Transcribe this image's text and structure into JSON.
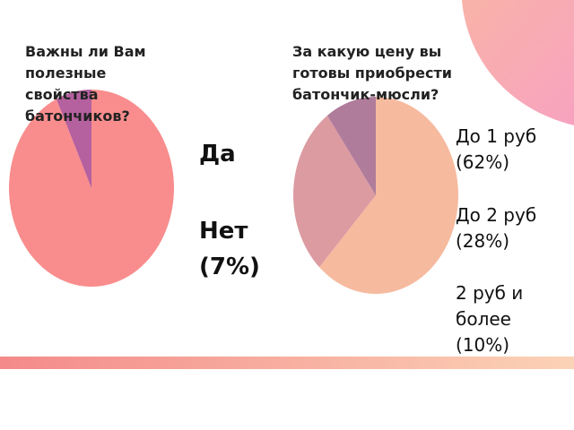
{
  "chart_data": [
    {
      "type": "pie",
      "title": "Важны ли Вам\nполезные\n свойства\nбатончиков?",
      "categories": [
        "Да",
        "Нет"
      ],
      "values": [
        93,
        7
      ],
      "value_labels": [
        null,
        "(7%)"
      ],
      "colors": [
        "#f98d8d",
        "#b5609f"
      ]
    },
    {
      "type": "pie",
      "title": "За какую цену вы\nготовы приобрести\nбатончик-мюсли?",
      "categories": [
        "До 1 руб",
        "До 2 руб",
        "2 руб и более"
      ],
      "values": [
        62,
        28,
        10
      ],
      "value_labels": [
        "(62%)",
        "(28%)",
        "(10%)"
      ],
      "colors": [
        "#f6ba9f",
        "#db9ba1",
        "#b07c9b"
      ]
    }
  ]
}
